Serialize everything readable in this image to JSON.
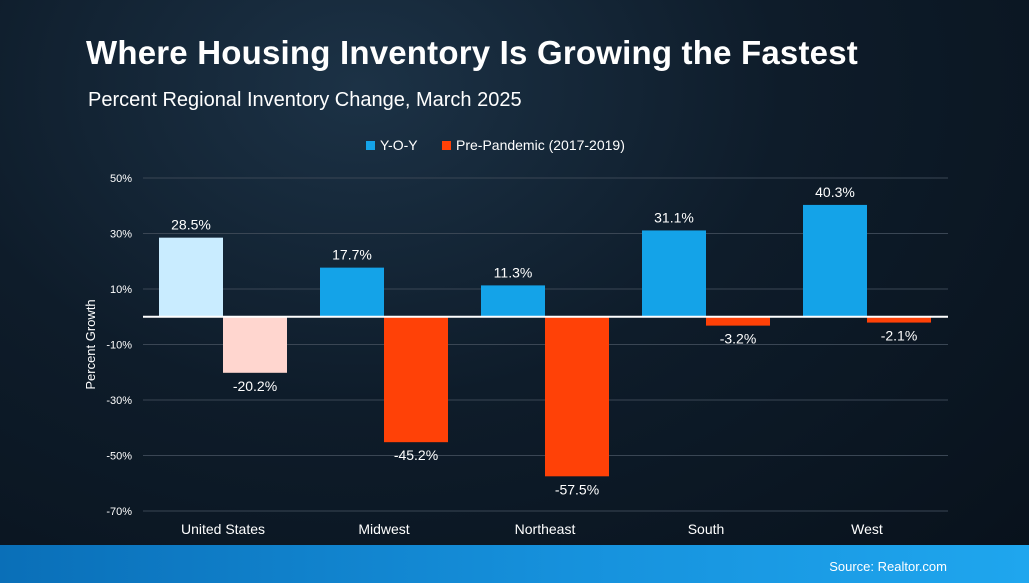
{
  "title": "Where Housing Inventory Is Growing the Fastest",
  "subtitle": "Percent Regional Inventory Change, March 2025",
  "source": "Source: Realtor.com",
  "colors": {
    "yoy": "#14a3e8",
    "pre": "#ff4107",
    "us_yoy": "#c9ecff",
    "us_pre": "#ffd6cf",
    "grid": "#3a4654"
  },
  "chart_data": {
    "type": "bar",
    "categories": [
      "United States",
      "Midwest",
      "Northeast",
      "South",
      "West"
    ],
    "series": [
      {
        "name": "Y-O-Y",
        "values": [
          28.5,
          17.7,
          11.3,
          31.1,
          40.3
        ],
        "labels": [
          "28.5%",
          "17.7%",
          "11.3%",
          "31.1%",
          "40.3%"
        ]
      },
      {
        "name": "Pre-Pandemic (2017-2019)",
        "values": [
          -20.2,
          -45.2,
          -57.5,
          -3.2,
          -2.1
        ],
        "labels": [
          "-20.2%",
          "-45.2%",
          "-57.5%",
          "-3.2%",
          "-2.1%"
        ]
      }
    ],
    "ylabel": "Percent Growth",
    "ylim": [
      -70,
      50
    ],
    "yticks": [
      50,
      30,
      10,
      -10,
      -30,
      -50,
      -70
    ],
    "ytick_labels": [
      "50%",
      "30%",
      "10%",
      "-10%",
      "-30%",
      "-50%",
      "-70%"
    ],
    "grid": true,
    "legend": "top-center"
  }
}
